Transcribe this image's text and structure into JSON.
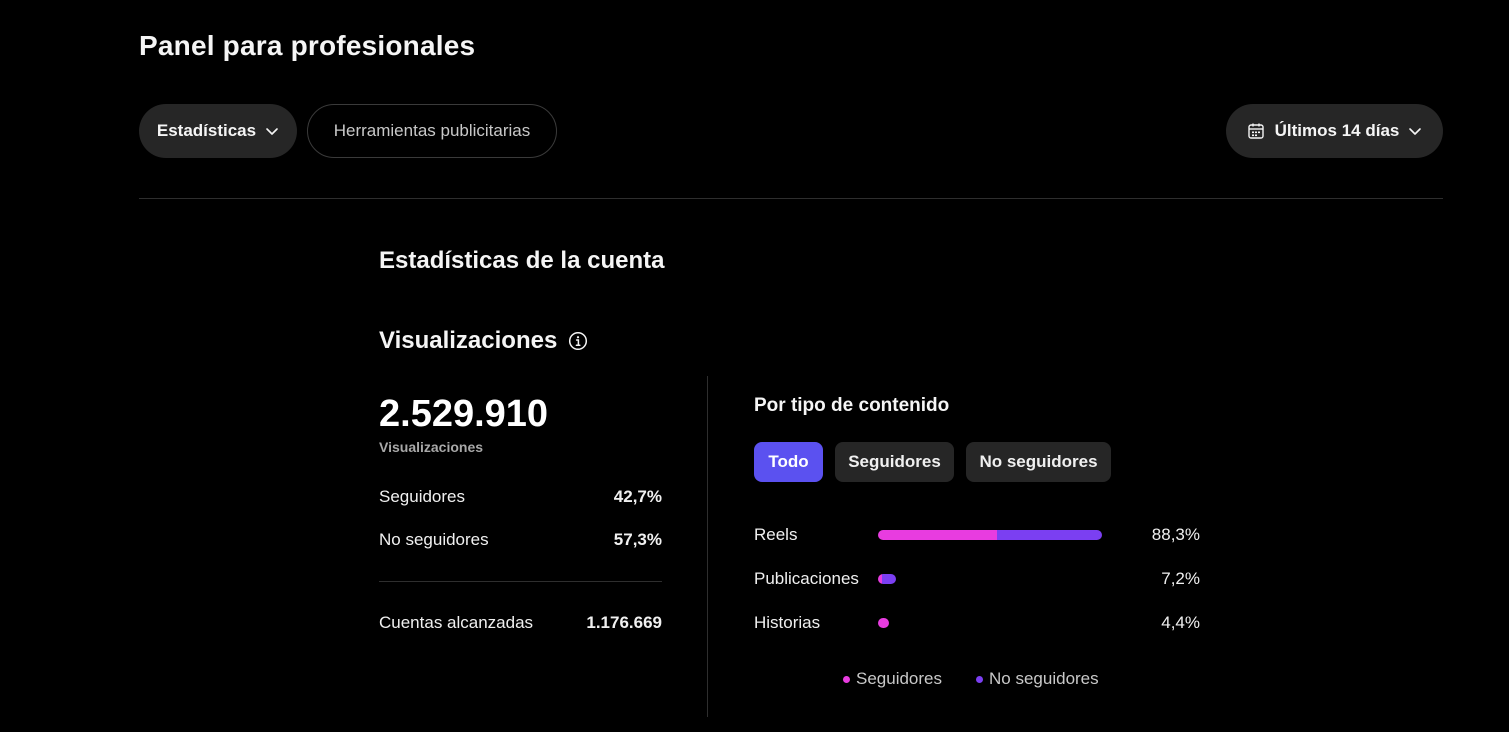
{
  "header": {
    "title": "Panel para profesionales"
  },
  "toolbar": {
    "stats_label": "Estadísticas",
    "ads_tools_label": "Herramientas publicitarias",
    "date_range_label": "Últimos 14 días"
  },
  "account": {
    "section_title": "Estadísticas de la cuenta",
    "metric_title": "Visualizaciones",
    "total_views": "2.529.910",
    "total_views_caption": "Visualizaciones",
    "breakdown": [
      {
        "label": "Seguidores",
        "value": "42,7%"
      },
      {
        "label": "No seguidores",
        "value": "57,3%"
      }
    ],
    "reach": {
      "label": "Cuentas alcanzadas",
      "value": "1.176.669"
    }
  },
  "content": {
    "title": "Por tipo de contenido",
    "filters": [
      "Todo",
      "Seguidores",
      "No seguidores"
    ],
    "selected_filter": "Todo",
    "colors": {
      "followers": "#e83ce0",
      "non_followers": "#7b3ff2",
      "accent": "#5b51f0"
    },
    "rows": [
      {
        "label": "Reels",
        "pct_label": "88,3%",
        "total": 88.3,
        "followers_share": 0.53
      },
      {
        "label": "Publicaciones",
        "pct_label": "7,2%",
        "total": 7.2,
        "followers_share": 0.2
      },
      {
        "label": "Historias",
        "pct_label": "4,4%",
        "total": 4.4,
        "followers_share": 1.0
      }
    ],
    "legend": [
      "Seguidores",
      "No seguidores"
    ]
  }
}
